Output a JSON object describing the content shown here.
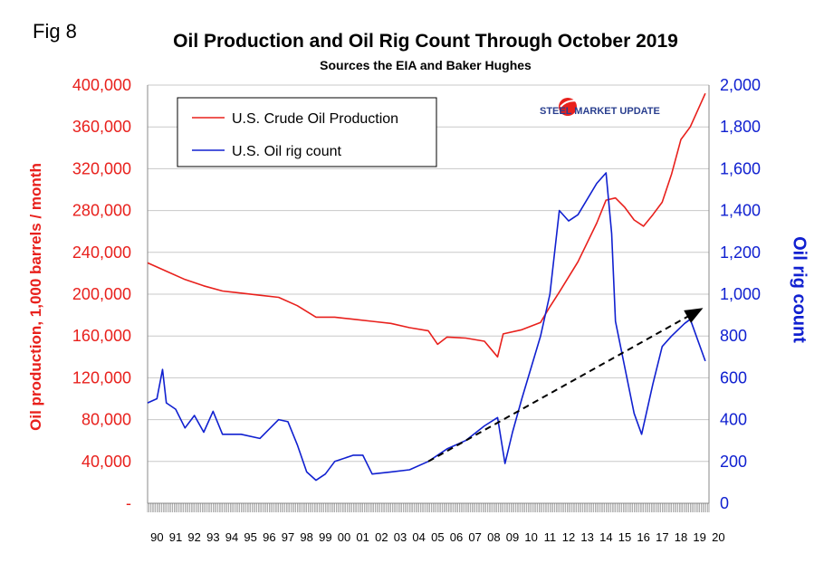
{
  "figure_label": "Fig 8",
  "chart_data": {
    "type": "line",
    "title": "Oil Production and Oil Rig Count Through October 2019",
    "subtitle": "Sources the EIA and Baker Hughes",
    "xlabel": "",
    "ylabel_left": "Oil production, 1,000 barrels / month",
    "ylabel_right": "Oil rig count",
    "x_tick_labels": [
      "90",
      "91",
      "92",
      "93",
      "94",
      "95",
      "96",
      "97",
      "98",
      "99",
      "00",
      "01",
      "02",
      "03",
      "04",
      "05",
      "06",
      "07",
      "08",
      "09",
      "10",
      "11",
      "12",
      "13",
      "14",
      "15",
      "16",
      "17",
      "18",
      "19",
      "20"
    ],
    "y_left_ticks": [
      "-",
      "40,000",
      "80,000",
      "120,000",
      "160,000",
      "200,000",
      "240,000",
      "280,000",
      "320,000",
      "360,000",
      "400,000"
    ],
    "y_right_ticks": [
      "0",
      "200",
      "400",
      "600",
      "800",
      "1,000",
      "1,200",
      "1,400",
      "1,600",
      "1,800",
      "2,000"
    ],
    "ylim_left": [
      0,
      400000
    ],
    "ylim_right": [
      0,
      2000
    ],
    "xlim": [
      1990,
      2020
    ],
    "grid": true,
    "legend_position": "top-left",
    "colors": {
      "production": "#e8201c",
      "rig": "#1020d0",
      "trend": "#000000"
    },
    "series": [
      {
        "name": "U.S. Crude Oil Production",
        "axis": "left",
        "x": [
          1990,
          1991,
          1992,
          1993,
          1994,
          1995,
          1996,
          1997,
          1998,
          1999,
          2000,
          2001,
          2002,
          2003,
          2004,
          2005,
          2005.5,
          2006,
          2007,
          2008,
          2008.7,
          2009,
          2010,
          2011,
          2011.5,
          2012,
          2013,
          2014,
          2014.5,
          2015,
          2015.5,
          2016,
          2016.5,
          2017,
          2017.5,
          2018,
          2018.5,
          2019,
          2019.8
        ],
        "values": [
          230000,
          222000,
          214000,
          208000,
          203000,
          201000,
          199000,
          197000,
          189000,
          178000,
          178000,
          176000,
          174000,
          172000,
          168000,
          165000,
          152000,
          159000,
          158000,
          155000,
          140000,
          162000,
          166000,
          173000,
          188000,
          202000,
          231000,
          268000,
          290000,
          292000,
          283000,
          271000,
          265000,
          276000,
          288000,
          315000,
          348000,
          360000,
          392000
        ]
      },
      {
        "name": "U.S. Oil rig count",
        "axis": "right",
        "x": [
          1990,
          1990.5,
          1990.8,
          1991,
          1991.5,
          1992,
          1992.5,
          1993,
          1993.5,
          1994,
          1995,
          1996,
          1997,
          1997.5,
          1998,
          1998.5,
          1999,
          1999.5,
          2000,
          2001,
          2001.5,
          2002,
          2003,
          2004,
          2005,
          2006,
          2007,
          2008,
          2008.7,
          2009.1,
          2009.5,
          2010,
          2011,
          2011.5,
          2012,
          2012.5,
          2013,
          2014,
          2014.5,
          2014.8,
          2015,
          2015.5,
          2016,
          2016.4,
          2017,
          2017.5,
          2018,
          2018.7,
          2019,
          2019.8
        ],
        "values": [
          480,
          500,
          640,
          480,
          450,
          360,
          420,
          340,
          440,
          330,
          330,
          310,
          400,
          390,
          280,
          150,
          110,
          140,
          200,
          230,
          230,
          140,
          150,
          160,
          200,
          260,
          300,
          370,
          410,
          190,
          340,
          500,
          800,
          1000,
          1400,
          1350,
          1380,
          1530,
          1580,
          1290,
          870,
          650,
          430,
          330,
          570,
          750,
          800,
          860,
          880,
          680
        ]
      }
    ],
    "trend_arrow": {
      "from": {
        "x": 2005,
        "y": 200
      },
      "to": {
        "x": 2019.6,
        "y": 930
      },
      "axis": "right",
      "style": "dashed"
    }
  },
  "branding": {
    "name": "STEEL MARKET UPDATE"
  }
}
